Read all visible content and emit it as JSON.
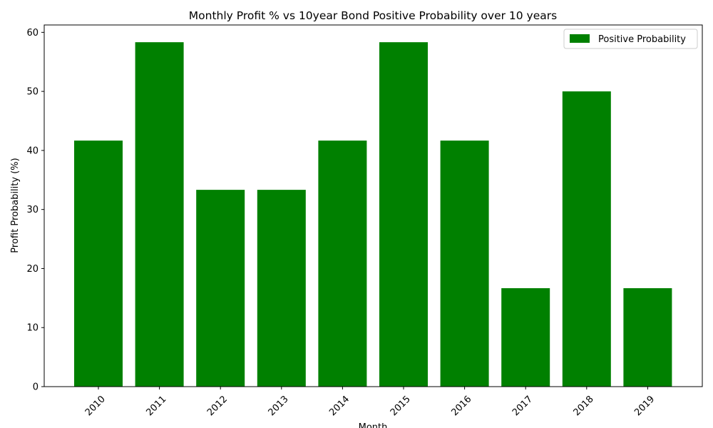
{
  "chart_data": {
    "type": "bar",
    "title": "Monthly Profit % vs 10year Bond Positive Probability over 10 years",
    "xlabel": "Month",
    "ylabel": "Profit Probability (%)",
    "categories": [
      "2010",
      "2011",
      "2012",
      "2013",
      "2014",
      "2015",
      "2016",
      "2017",
      "2018",
      "2019"
    ],
    "series": [
      {
        "name": "Positive Probability",
        "color": "#008000",
        "values": [
          41.67,
          58.33,
          33.33,
          33.33,
          41.67,
          58.33,
          41.67,
          16.67,
          50.0,
          16.67
        ]
      }
    ],
    "ylim": [
      0,
      61.25
    ],
    "yticks": [
      "0",
      "10",
      "20",
      "30",
      "40",
      "50",
      "60"
    ],
    "x_tick_rotation": 45,
    "grid": false,
    "legend": "top-right"
  }
}
